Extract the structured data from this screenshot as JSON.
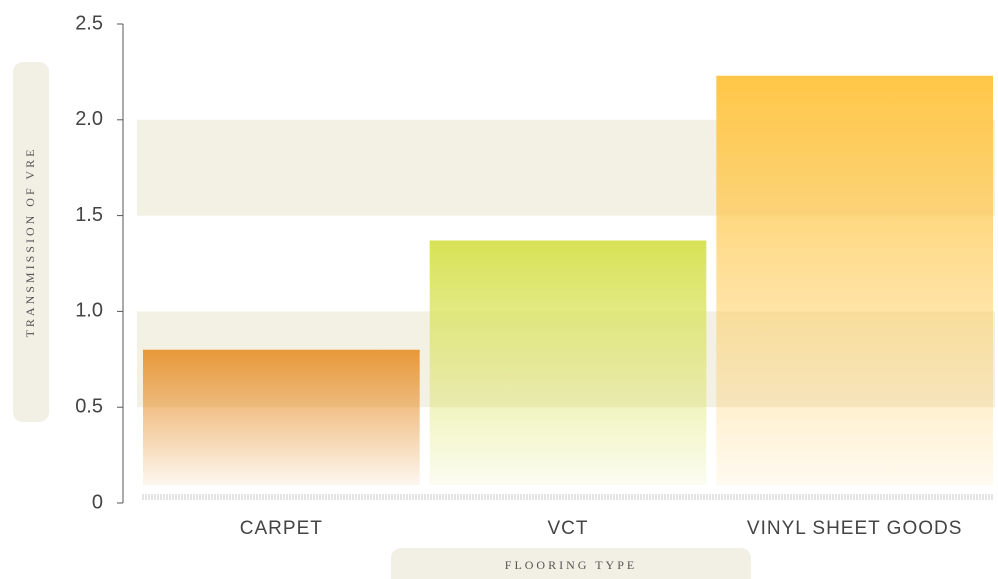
{
  "chart_data": {
    "type": "bar",
    "x_label": "FLOORING TYPE",
    "y_label": "TRANSMISSION OF VRE",
    "categories": [
      "CARPET",
      "VCT",
      "VINYL SHEET GOODS"
    ],
    "values": [
      0.8,
      1.37,
      2.23
    ],
    "colors": [
      "#e8983a",
      "#d8e255",
      "#ffc646"
    ],
    "ylim": [
      0,
      2.5
    ],
    "yticks": [
      0,
      0.5,
      {
        "value": 1,
        "label": "1.0"
      },
      1.5,
      {
        "value": 2,
        "label": "2.0"
      },
      2.5
    ],
    "grid": true
  }
}
